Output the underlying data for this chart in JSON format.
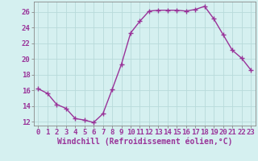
{
  "x": [
    0,
    1,
    2,
    3,
    4,
    5,
    6,
    7,
    8,
    9,
    10,
    11,
    12,
    13,
    14,
    15,
    16,
    17,
    18,
    19,
    20,
    21,
    22,
    23
  ],
  "y": [
    16.2,
    15.6,
    14.2,
    13.7,
    12.4,
    12.2,
    11.9,
    13.0,
    16.1,
    19.3,
    23.3,
    24.8,
    26.1,
    26.2,
    26.2,
    26.2,
    26.1,
    26.3,
    26.7,
    25.1,
    23.1,
    21.1,
    20.1,
    18.6
  ],
  "line_color": "#993399",
  "marker": "+",
  "marker_size": 5,
  "linewidth": 1.0,
  "background_color": "#d5f0f0",
  "grid_color": "#b8dada",
  "xlabel": "Windchill (Refroidissement éolien,°C)",
  "xlabel_fontsize": 7,
  "tick_fontsize": 6.5,
  "yticks": [
    12,
    14,
    16,
    18,
    20,
    22,
    24,
    26
  ],
  "xticks": [
    0,
    1,
    2,
    3,
    4,
    5,
    6,
    7,
    8,
    9,
    10,
    11,
    12,
    13,
    14,
    15,
    16,
    17,
    18,
    19,
    20,
    21,
    22,
    23
  ],
  "xtick_labels": [
    "0",
    "1",
    "2",
    "3",
    "4",
    "5",
    "6",
    "7",
    "8",
    "9",
    "10",
    "11",
    "12",
    "13",
    "14",
    "15",
    "16",
    "17",
    "18",
    "19",
    "20",
    "21",
    "22",
    "23"
  ],
  "ylim": [
    11.5,
    27.3
  ],
  "xlim": [
    -0.5,
    23.5
  ]
}
